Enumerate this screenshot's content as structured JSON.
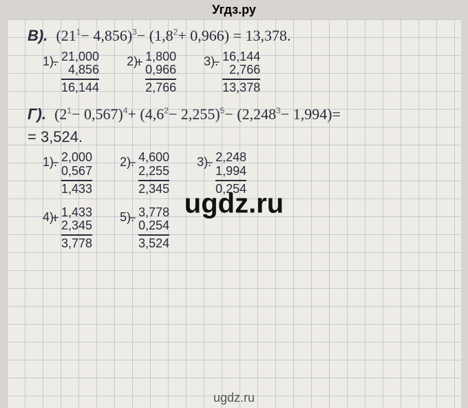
{
  "watermarks": {
    "top": "Угдз.ру",
    "center": "ugdz.ru",
    "bottom": "ugdz.ru"
  },
  "problem_v": {
    "label": "В).",
    "expression": "(21 − 4,856) − (1,8 + 0,966) = 13,378.",
    "sup1": "1",
    "sup2": "3",
    "sup3": "2",
    "calcs": [
      {
        "n": "1).",
        "sign": "−",
        "a": "21,000",
        "b": "4,856",
        "r": "16,144"
      },
      {
        "n": "2).",
        "sign": "+",
        "a": "1,800",
        "b": "0,966",
        "r": "2,766"
      },
      {
        "n": "3).",
        "sign": "−",
        "a": "16,144",
        "b": "2,766",
        "r": "13,378"
      }
    ]
  },
  "problem_g": {
    "label": "Г).",
    "expression": "(2 − 0,567) + (4,6 − 2,255) − (2,248 − 1,994) =",
    "sup1": "1",
    "sup2": "4",
    "sup3": "2",
    "sup4": "5",
    "sup5": "3",
    "result": "= 3,524.",
    "calcs_row1": [
      {
        "n": "1).",
        "sign": "−",
        "a": "2,000",
        "b": "0,567",
        "r": "1,433"
      },
      {
        "n": "2).",
        "sign": "−",
        "a": "4,600",
        "b": "2,255",
        "r": "2,345"
      },
      {
        "n": "3).",
        "sign": "−",
        "a": "2,248",
        "b": "1,994",
        "r": "0,254"
      }
    ],
    "calcs_row2": [
      {
        "n": "4).",
        "sign": "+",
        "a": "1,433",
        "b": "2,345",
        "r": "3,778"
      },
      {
        "n": "5).",
        "sign": "−",
        "a": "3,778",
        "b": "0,254",
        "r": "3,524"
      }
    ]
  },
  "style": {
    "bg": "#d8d5d0",
    "paper": "#eeece6",
    "grid": "rgba(120,140,180,0.35)",
    "ink": "#2a2a3a",
    "header_fontsize": 18,
    "body_fontsize": 22,
    "calc_fontsize": 18,
    "wm_center_fontsize": 40
  }
}
